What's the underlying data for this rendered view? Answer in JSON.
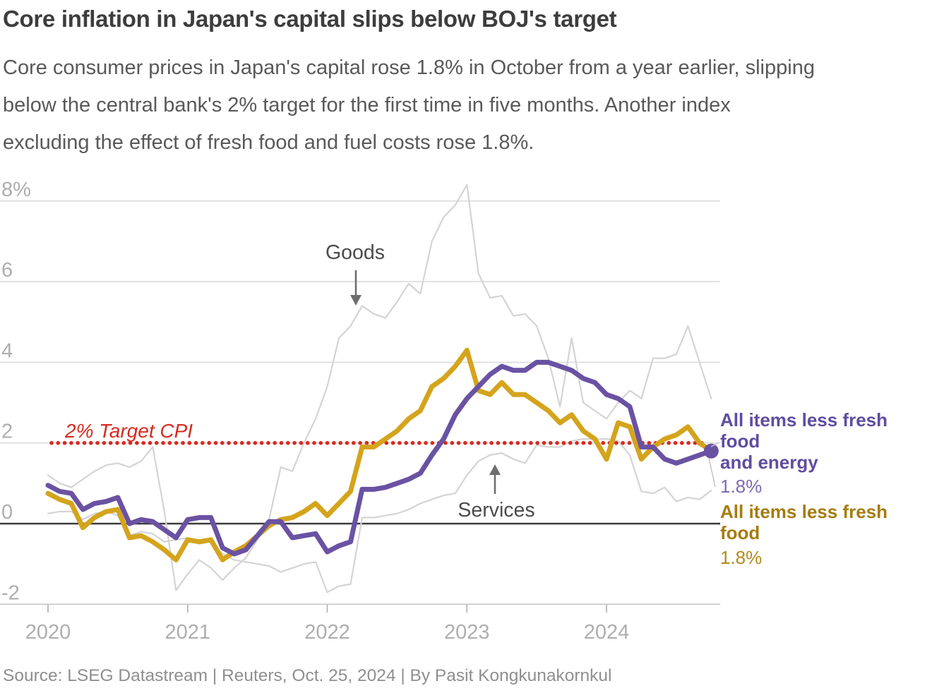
{
  "header": {
    "title": "Core inflation in Japan's capital slips below BOJ's target",
    "subtitle_lines": [
      "Core consumer prices in Japan's capital rose 1.8% in October from a year earlier, slipping",
      "below the central bank's 2% target for the first time in five months. Another index",
      "excluding the effect of fresh food and fuel costs rose 1.8%."
    ]
  },
  "annotations": {
    "goods": "Goods",
    "services": "Services",
    "target": "2% Target CPI"
  },
  "legend": {
    "series1_label_line1": "All items less fresh food",
    "series1_label_line2": "and energy",
    "series1_value": "1.8%",
    "series2_label": "All items less fresh food",
    "series2_value": "1.8%"
  },
  "source": "Source: LSEG Datastream | Reuters, Oct. 25, 2024 | By Pasit Kongkunakornkul",
  "colors": {
    "purple": "#6a52a3",
    "gold": "#d4a41c",
    "gray_line": "#d4d4d4",
    "red": "#d62b1f",
    "grid": "#dcdcdc",
    "zero_line": "#3c3c3c",
    "axis": "#cfcfcf",
    "tick_label": "#aeaeae",
    "annotation_text": "#4c4c4c",
    "arrow": "#6e6e6e",
    "connector": "#c4c4c4"
  },
  "chart_data": {
    "type": "line",
    "title": "Tokyo CPI, % change year-on-year",
    "x_start": "2020-01",
    "x_end": "2024-10",
    "x_tick_labels": [
      "2020",
      "2021",
      "2022",
      "2023",
      "2024"
    ],
    "y_ticks": [
      {
        "value": 8,
        "label": "8%"
      },
      {
        "value": 6,
        "label": "6"
      },
      {
        "value": 4,
        "label": "4"
      },
      {
        "value": 2,
        "label": "2"
      },
      {
        "value": 0,
        "label": "0"
      },
      {
        "value": -2,
        "label": "-2"
      }
    ],
    "ylim": [
      -2,
      8.5
    ],
    "target_line": {
      "value": 2,
      "label": "2% Target CPI"
    },
    "legend_position": "right",
    "grid": true,
    "series": [
      {
        "name": "Goods",
        "color_key": "gray_line",
        "width": 2.2,
        "values": [
          1.2,
          1.0,
          0.9,
          1.1,
          1.3,
          1.45,
          1.5,
          1.4,
          1.55,
          1.9,
          0.3,
          -1.65,
          -1.25,
          -0.9,
          -1.1,
          -1.4,
          -1.1,
          -0.85,
          -0.4,
          0.1,
          1.4,
          1.3,
          2.0,
          2.6,
          3.4,
          4.6,
          4.9,
          5.4,
          5.2,
          5.1,
          5.5,
          5.95,
          5.7,
          7.0,
          7.6,
          7.9,
          8.4,
          6.2,
          5.6,
          5.65,
          5.15,
          5.2,
          4.9,
          4.1,
          2.9,
          4.6,
          3.0,
          2.8,
          2.6,
          3.0,
          3.3,
          3.1,
          4.1,
          4.1,
          4.2,
          4.9,
          4.0,
          3.1
        ]
      },
      {
        "name": "Services",
        "color_key": "gray_line",
        "width": 2.2,
        "values": [
          0.25,
          0.3,
          0.3,
          0.1,
          0.25,
          0.3,
          0.2,
          -0.3,
          -0.2,
          -0.25,
          -0.45,
          -0.4,
          -0.35,
          -0.5,
          -0.45,
          -0.75,
          -0.9,
          -0.95,
          -1.0,
          -1.05,
          -1.2,
          -1.1,
          -1.0,
          -0.95,
          -1.7,
          -1.55,
          -1.5,
          0.15,
          0.15,
          0.2,
          0.25,
          0.35,
          0.5,
          0.6,
          0.7,
          0.75,
          1.2,
          1.55,
          1.7,
          1.75,
          1.6,
          1.5,
          1.95,
          1.9,
          1.9,
          2.05,
          2.1,
          2.1,
          2.1,
          2.05,
          1.7,
          0.8,
          0.75,
          0.9,
          0.55,
          0.65,
          0.6,
          0.82
        ]
      },
      {
        "name": "All items less fresh food",
        "latest_value": "1.8%",
        "color_key": "gold",
        "width": 7,
        "values": [
          0.75,
          0.6,
          0.5,
          -0.1,
          0.15,
          0.3,
          0.35,
          -0.35,
          -0.3,
          -0.45,
          -0.65,
          -0.9,
          -0.4,
          -0.45,
          -0.4,
          -0.9,
          -0.7,
          -0.55,
          -0.3,
          -0.05,
          0.1,
          0.15,
          0.3,
          0.5,
          0.2,
          0.5,
          0.8,
          1.9,
          1.9,
          2.1,
          2.3,
          2.6,
          2.8,
          3.4,
          3.6,
          3.9,
          4.3,
          3.3,
          3.2,
          3.5,
          3.2,
          3.2,
          3.0,
          2.8,
          2.5,
          2.7,
          2.3,
          2.1,
          1.6,
          2.5,
          2.4,
          1.6,
          1.9,
          2.1,
          2.2,
          2.4,
          2.0,
          1.8
        ]
      },
      {
        "name": "All items less fresh food and energy",
        "latest_value": "1.8%",
        "color_key": "purple",
        "width": 7,
        "end_dot": true,
        "values": [
          0.95,
          0.8,
          0.75,
          0.35,
          0.5,
          0.55,
          0.65,
          0.0,
          0.1,
          0.05,
          -0.15,
          -0.35,
          0.1,
          0.15,
          0.15,
          -0.6,
          -0.75,
          -0.65,
          -0.3,
          0.05,
          0.05,
          -0.35,
          -0.3,
          -0.25,
          -0.7,
          -0.55,
          -0.45,
          0.85,
          0.85,
          0.9,
          1.0,
          1.1,
          1.25,
          1.7,
          2.1,
          2.7,
          3.1,
          3.4,
          3.7,
          3.9,
          3.8,
          3.8,
          4.0,
          4.0,
          3.9,
          3.8,
          3.6,
          3.5,
          3.2,
          3.1,
          2.9,
          1.9,
          1.9,
          1.6,
          1.5,
          1.6,
          1.7,
          1.8
        ]
      }
    ]
  }
}
